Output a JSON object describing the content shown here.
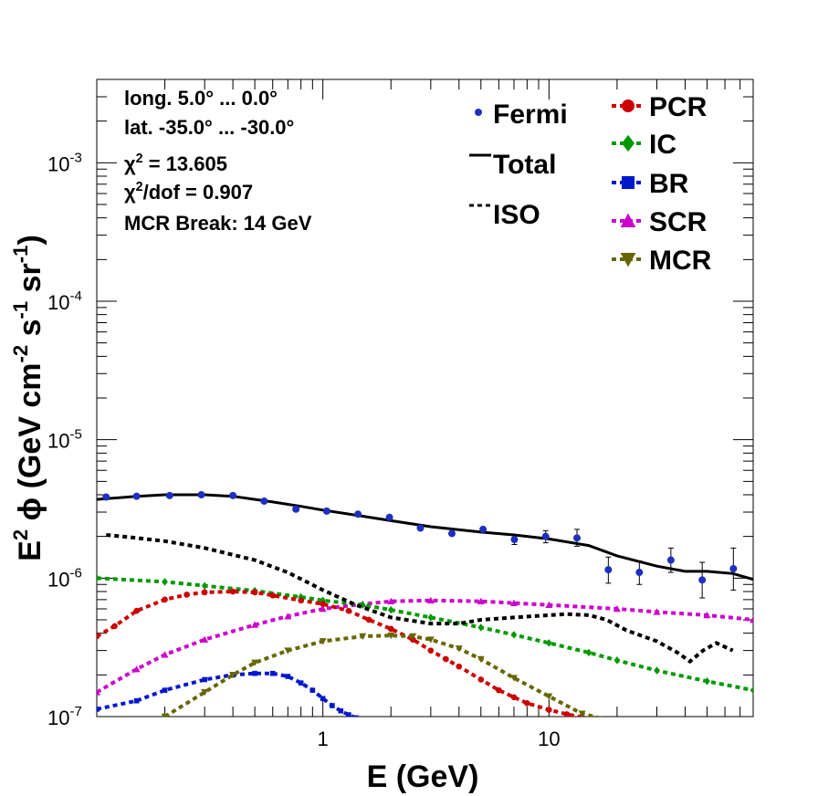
{
  "chart_data": {
    "type": "line",
    "title": "",
    "x_scale": "log",
    "y_scale": "log",
    "xlim": [
      0.1,
      80
    ],
    "ylim": [
      1e-07,
      0.004
    ],
    "x_ticks": [
      {
        "value": 1,
        "label": "1"
      },
      {
        "value": 10,
        "label": "10"
      }
    ],
    "y_ticks": [
      {
        "value": 1e-07,
        "base": "10",
        "exp": "-7"
      },
      {
        "value": 1e-06,
        "base": "10",
        "exp": "-6"
      },
      {
        "value": 1e-05,
        "base": "10",
        "exp": "-5"
      },
      {
        "value": 0.0001,
        "base": "10",
        "exp": "-4"
      },
      {
        "value": 0.001,
        "base": "10",
        "exp": "-3"
      }
    ],
    "xlabel": "E (GeV)",
    "ylabel": {
      "parts": [
        {
          "t": "E",
          "sup": false
        },
        {
          "t": "2",
          "sup": true
        },
        {
          "t": " ϕ (GeV cm",
          "sup": false
        },
        {
          "t": "-2",
          "sup": true
        },
        {
          "t": " s",
          "sup": false
        },
        {
          "t": "-1",
          "sup": true
        },
        {
          "t": " sr",
          "sup": false
        },
        {
          "t": "-1",
          "sup": true
        },
        {
          "t": ")",
          "sup": false
        }
      ]
    },
    "info_lines": [
      [
        {
          "t": "long. 5.0° ... 0.0°",
          "sup": false
        }
      ],
      [
        {
          "t": "lat. -35.0° ... -30.0°",
          "sup": false
        }
      ],
      [
        {
          "t": "χ",
          "sup": false
        },
        {
          "t": "2",
          "sup": true
        },
        {
          "t": " = 13.605",
          "sup": false
        }
      ],
      [
        {
          "t": "χ",
          "sup": false
        },
        {
          "t": "2",
          "sup": true
        },
        {
          "t": "/dof = 0.907",
          "sup": false
        }
      ],
      [
        {
          "t": "MCR Break: 14 GeV",
          "sup": false
        }
      ]
    ],
    "legend_left": [
      {
        "name": "Fermi",
        "key": "fermi"
      },
      {
        "name": "Total",
        "key": "total"
      },
      {
        "name": "ISO",
        "key": "iso"
      }
    ],
    "legend_right": [
      {
        "name": "PCR",
        "key": "pcr"
      },
      {
        "name": "IC",
        "key": "ic"
      },
      {
        "name": "BR",
        "key": "br"
      },
      {
        "name": "SCR",
        "key": "scr"
      },
      {
        "name": "MCR",
        "key": "mcr"
      }
    ],
    "fermi": {
      "name": "Fermi",
      "color": "#1f2fbf",
      "points": [
        {
          "x": 0.11,
          "y": 3.85e-06
        },
        {
          "x": 0.15,
          "y": 3.9e-06
        },
        {
          "x": 0.21,
          "y": 3.95e-06
        },
        {
          "x": 0.29,
          "y": 4e-06
        },
        {
          "x": 0.4,
          "y": 3.95e-06
        },
        {
          "x": 0.55,
          "y": 3.6e-06
        },
        {
          "x": 0.76,
          "y": 3.15e-06
        },
        {
          "x": 1.04,
          "y": 3.05e-06
        },
        {
          "x": 1.43,
          "y": 2.9e-06
        },
        {
          "x": 1.97,
          "y": 2.75e-06
        },
        {
          "x": 2.7,
          "y": 2.3e-06
        },
        {
          "x": 3.72,
          "y": 2.1e-06
        },
        {
          "x": 5.11,
          "y": 2.25e-06
        },
        {
          "x": 7.03,
          "y": 1.9e-06,
          "err": [
            1.75e-06,
            2.05e-06
          ]
        },
        {
          "x": 9.67,
          "y": 2e-06,
          "err": [
            1.8e-06,
            2.2e-06
          ]
        },
        {
          "x": 13.3,
          "y": 1.95e-06,
          "err": [
            1.7e-06,
            2.25e-06
          ]
        },
        {
          "x": 18.3,
          "y": 1.15e-06,
          "err": [
            9.2e-07,
            1.42e-06
          ]
        },
        {
          "x": 25.1,
          "y": 1.1e-06,
          "err": [
            9e-07,
            1.33e-06
          ]
        },
        {
          "x": 34.6,
          "y": 1.35e-06,
          "err": [
            1.1e-06,
            1.65e-06
          ]
        },
        {
          "x": 47.6,
          "y": 9.7e-07,
          "err": [
            7.2e-07,
            1.3e-06
          ]
        },
        {
          "x": 65.4,
          "y": 1.17e-06,
          "err": [
            8.2e-07,
            1.65e-06
          ]
        }
      ]
    },
    "series": [
      {
        "key": "total",
        "name": "Total",
        "color": "#000000",
        "dash": "",
        "marker": "none",
        "x": [
          0.1,
          0.15,
          0.2,
          0.3,
          0.4,
          0.6,
          0.8,
          1.0,
          1.5,
          2.0,
          3.0,
          5.0,
          7.0,
          10,
          15,
          20,
          30,
          40,
          50,
          65,
          80
        ],
        "y": [
          3.7e-06,
          3.9e-06,
          4e-06,
          4e-06,
          3.9e-06,
          3.55e-06,
          3.3e-06,
          3.1e-06,
          2.8e-06,
          2.6e-06,
          2.35e-06,
          2.15e-06,
          2.05e-06,
          1.92e-06,
          1.72e-06,
          1.45e-06,
          1.22e-06,
          1.12e-06,
          1.12e-06,
          1.08e-06,
          9.8e-07
        ]
      },
      {
        "key": "iso",
        "name": "ISO",
        "color": "#000000",
        "dash": "5,4",
        "marker": "none",
        "x": [
          0.11,
          0.15,
          0.2,
          0.3,
          0.5,
          0.7,
          1.0,
          1.4,
          2.0,
          3.0,
          4.0,
          5.0,
          7.0,
          10,
          12,
          15,
          18,
          22,
          30,
          37,
          42,
          48,
          55,
          65
        ],
        "y": [
          2.05e-06,
          1.95e-06,
          1.85e-06,
          1.65e-06,
          1.35e-06,
          1.1e-06,
          8.2e-07,
          6.4e-07,
          5.2e-07,
          4.7e-07,
          4.7e-07,
          5e-07,
          5.2e-07,
          5.4e-07,
          5.5e-07,
          5.4e-07,
          5e-07,
          4.2e-07,
          3.5e-07,
          2.9e-07,
          2.5e-07,
          3e-07,
          3.4e-07,
          3e-07
        ]
      },
      {
        "key": "pcr",
        "name": "PCR",
        "color": "#cc0000",
        "dash": "5,4",
        "marker": "circle",
        "x": [
          0.1,
          0.12,
          0.15,
          0.2,
          0.25,
          0.3,
          0.4,
          0.5,
          0.6,
          0.8,
          1.0,
          1.3,
          1.6,
          2.0,
          2.5,
          3.0,
          3.5,
          4.0,
          5.0,
          6.0,
          7.0,
          8.0,
          10,
          12,
          15
        ],
        "y": [
          3.8e-07,
          4.5e-07,
          5.8e-07,
          7e-07,
          7.6e-07,
          7.9e-07,
          8e-07,
          7.9e-07,
          7.5e-07,
          6.9e-07,
          6.5e-07,
          5.8e-07,
          5e-07,
          4.3e-07,
          3.6e-07,
          3e-07,
          2.6e-07,
          2.3e-07,
          1.85e-07,
          1.55e-07,
          1.38e-07,
          1.25e-07,
          1.12e-07,
          1.04e-07,
          9.7e-08
        ]
      },
      {
        "key": "ic",
        "name": "IC",
        "color": "#009900",
        "dash": "5,4",
        "marker": "diamond",
        "x": [
          0.1,
          0.2,
          0.3,
          0.5,
          0.8,
          1.0,
          1.5,
          2.0,
          3.0,
          5.0,
          7.0,
          10,
          15,
          20,
          30,
          50,
          80
        ],
        "y": [
          1e-06,
          9.4e-07,
          8.8e-07,
          8.1e-07,
          7.3e-07,
          6.9e-07,
          6.4e-07,
          5.9e-07,
          5.2e-07,
          4.4e-07,
          3.9e-07,
          3.4e-07,
          2.9e-07,
          2.55e-07,
          2.15e-07,
          1.8e-07,
          1.55e-07
        ]
      },
      {
        "key": "br",
        "name": "BR",
        "color": "#0018cc",
        "dash": "5,4",
        "marker": "square",
        "x": [
          0.1,
          0.15,
          0.2,
          0.3,
          0.4,
          0.5,
          0.6,
          0.7,
          0.8,
          0.9,
          1.0,
          1.1,
          1.2,
          1.3,
          1.4
        ],
        "y": [
          1.13e-07,
          1.3e-07,
          1.55e-07,
          1.85e-07,
          2e-07,
          2.05e-07,
          2.05e-07,
          1.95e-07,
          1.75e-07,
          1.55e-07,
          1.35e-07,
          1.2e-07,
          1.1e-07,
          1.03e-07,
          9.8e-08
        ]
      },
      {
        "key": "scr",
        "name": "SCR",
        "color": "#cc00cc",
        "dash": "5,4",
        "marker": "triangle",
        "x": [
          0.1,
          0.15,
          0.2,
          0.3,
          0.5,
          0.7,
          1.0,
          1.5,
          2.0,
          3.0,
          5.0,
          7.0,
          10,
          20,
          30,
          50,
          80
        ],
        "y": [
          1.5e-07,
          2.2e-07,
          2.8e-07,
          3.6e-07,
          4.6e-07,
          5.3e-07,
          6e-07,
          6.5e-07,
          6.8e-07,
          6.9e-07,
          6.8e-07,
          6.6e-07,
          6.4e-07,
          6e-07,
          5.7e-07,
          5.4e-07,
          5e-07
        ]
      },
      {
        "key": "mcr",
        "name": "MCR",
        "color": "#666600",
        "dash": "5,4",
        "marker": "triangle-down",
        "x": [
          0.2,
          0.3,
          0.4,
          0.5,
          0.7,
          1.0,
          1.5,
          2.0,
          2.5,
          3.0,
          4.0,
          5.0,
          7.0,
          10,
          14,
          18
        ],
        "y": [
          1e-07,
          1.5e-07,
          2e-07,
          2.45e-07,
          3e-07,
          3.5e-07,
          3.8e-07,
          3.85e-07,
          3.8e-07,
          3.6e-07,
          3.1e-07,
          2.6e-07,
          1.9e-07,
          1.4e-07,
          1.05e-07,
          9.5e-08
        ]
      }
    ]
  }
}
